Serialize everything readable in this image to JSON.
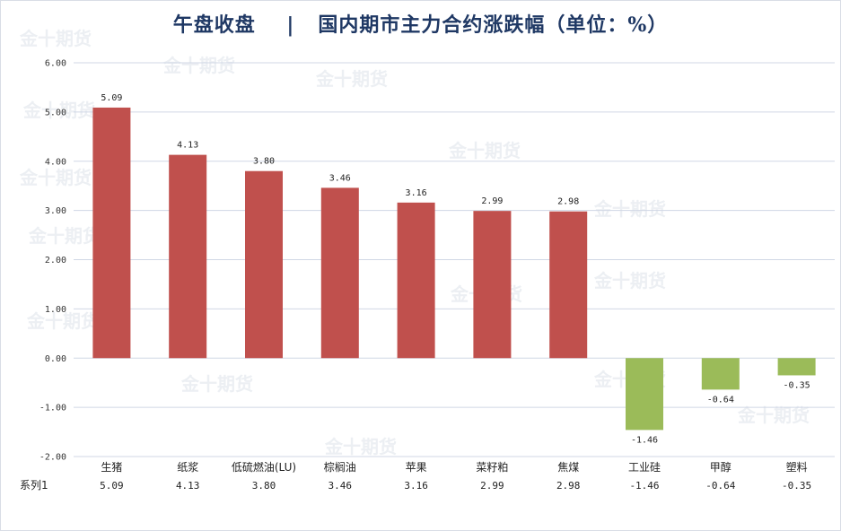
{
  "chart_data": {
    "type": "bar",
    "title": "午盘收盘    |   国内期市主力合约涨跌幅（单位：%）",
    "categories": [
      "生猪",
      "纸浆",
      "低硫燃油(LU)",
      "棕榈油",
      "苹果",
      "菜籽粕",
      "焦煤",
      "工业硅",
      "甲醇",
      "塑料"
    ],
    "series": [
      {
        "name": "系列1",
        "values": [
          5.09,
          4.13,
          3.8,
          3.46,
          3.16,
          2.99,
          2.98,
          -1.46,
          -0.64,
          -0.35
        ]
      }
    ],
    "value_labels": [
      "5.09",
      "4.13",
      "3.80",
      "3.46",
      "3.16",
      "2.99",
      "2.98",
      "-1.46",
      "-0.64",
      "-0.35"
    ],
    "yticks": [
      "6.00",
      "5.00",
      "4.00",
      "3.00",
      "2.00",
      "1.00",
      "0.00",
      "-1.00",
      "-2.00"
    ],
    "ylim": [
      -2,
      6
    ],
    "grid": true,
    "colors": {
      "positive": "#c0504d",
      "negative": "#9bbb59",
      "grid": "#d0d7e5",
      "title": "#1f3864"
    },
    "data_table": true,
    "watermark": "金十期货"
  }
}
